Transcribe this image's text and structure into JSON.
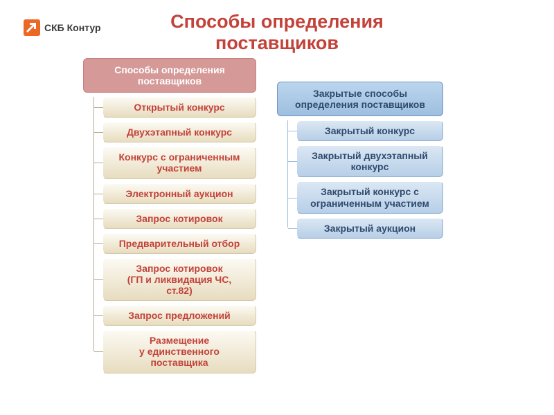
{
  "logo": {
    "text": "СКБ Контур",
    "icon_bg": "#ec6723",
    "icon_arrow": "#ffffff",
    "text_color": "#3a3a3a"
  },
  "title": {
    "line1": "Способы определения",
    "line2": "поставщиков",
    "color": "#c34239",
    "fontsize": 27
  },
  "background": "#ffffff",
  "connector_color": "#b7aa8f",
  "left_tree": {
    "header": {
      "line1": "Способы определения",
      "line2": "поставщиков",
      "bg": "#d59998",
      "border": "#c77f7c",
      "text_color": "#ffffff"
    },
    "items": [
      {
        "text": "Открытый конкурс"
      },
      {
        "text": "Двухэтапный конкурс"
      },
      {
        "line1": "Конкурс с ограниченным",
        "line2": "участием"
      },
      {
        "text": "Электронный аукцион"
      },
      {
        "text": "Запрос котировок"
      },
      {
        "text": "Предварительный отбор"
      },
      {
        "line1": "Запрос котировок",
        "line2": "(ГП и ликвидация ЧС,",
        "line3": "ст.82)"
      },
      {
        "text": "Запрос предложений"
      },
      {
        "line1": "Размещение",
        "line2": "у единственного",
        "line3": "поставщика"
      }
    ],
    "item_bg_top": "#fcfaf3",
    "item_bg_bottom": "#e7dcbf",
    "item_border_top": "#ffffff",
    "item_border_bottom": "#d5c9a8",
    "item_text_color": "#c34239"
  },
  "right_tree": {
    "header": {
      "line1": "Закрытые способы",
      "line2": "определения поставщиков",
      "bg_top": "#bbd5ed",
      "bg_bottom": "#9ebfe0",
      "border": "#6f94c4",
      "text_color": "#2f4a6d"
    },
    "items": [
      {
        "text": "Закрытый конкурс"
      },
      {
        "line1": "Закрытый двухэтапный",
        "line2": "конкурс"
      },
      {
        "line1": "Закрытый конкурс с",
        "line2": "ограниченным участием"
      },
      {
        "text": "Закрытый аукцион"
      }
    ],
    "item_bg_top": "#dbe7f4",
    "item_bg_bottom": "#b7cfe7",
    "item_border_top": "#ffffff",
    "item_border_bottom": "#8fb0d3",
    "item_text_color": "#2f4a6d",
    "connector_color": "#9ebfe0"
  }
}
